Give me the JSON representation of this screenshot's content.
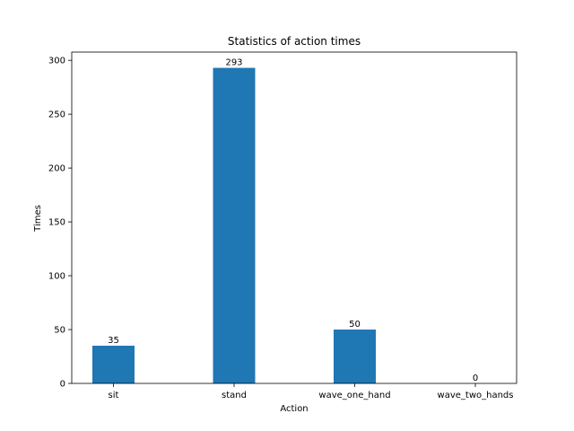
{
  "chart_data": {
    "type": "bar",
    "title": "Statistics of action times",
    "xlabel": "Action",
    "ylabel": "Times",
    "categories": [
      "sit",
      "stand",
      "wave_one_hand",
      "wave_two_hands"
    ],
    "values": [
      35,
      293,
      50,
      0
    ],
    "data_labels": [
      "35",
      "293",
      "50",
      "0"
    ],
    "ylim": [
      0,
      307.65
    ],
    "yticks": [
      0,
      50,
      100,
      150,
      200,
      250,
      300
    ],
    "ytick_labels": [
      "0",
      "50",
      "100",
      "150",
      "200",
      "250",
      "300"
    ],
    "bar_color": "#1f77b4",
    "grid": false,
    "legend": "none"
  }
}
